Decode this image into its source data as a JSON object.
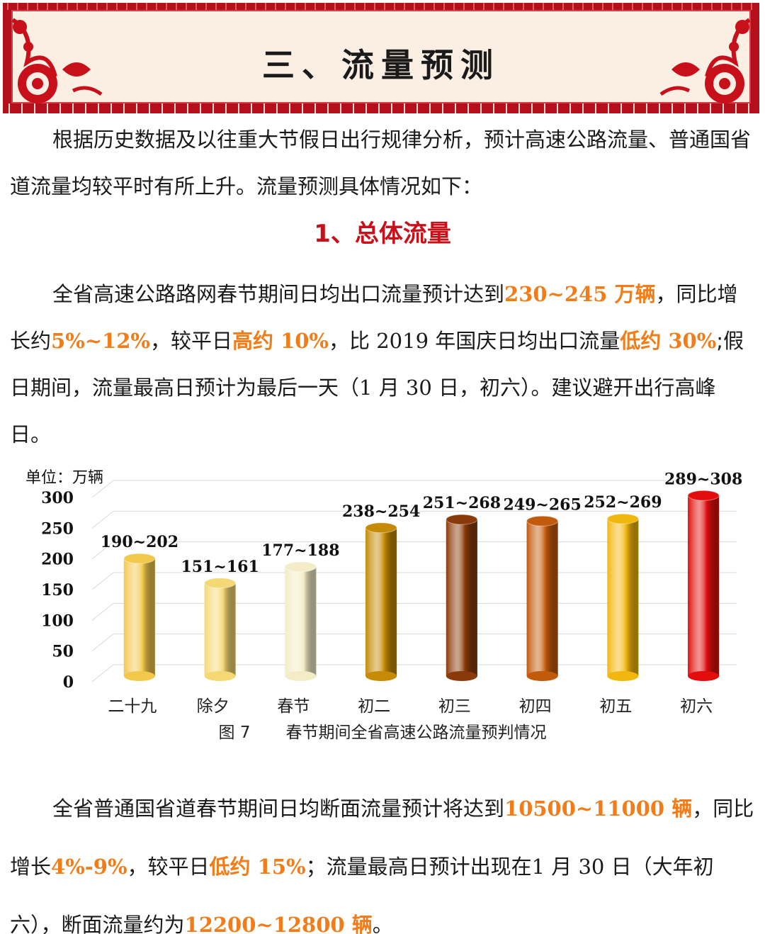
{
  "banner": {
    "title": "三、流量预测"
  },
  "intro": {
    "text": "根据历史数据及以往重大节假日出行规律分析，预计高速公路流量、普通国省道流量均较平时有所上升。流量预测具体情况如下："
  },
  "section": {
    "title": "1、总体流量"
  },
  "para1": {
    "t1": "全省高速公路路网春节期间日均出口流量预计达到",
    "h1": "230~245 万辆",
    "t2": "，同比增长约",
    "h2": "5%~12%",
    "t3": "，较平日",
    "h3": "高约 10%",
    "t4": "，比",
    "t4b": "2019",
    "t4c": "年国庆日均出口流量",
    "h4": "低约 30%",
    "t5": ";假日期间，流量最高日预计为最后一天（",
    "t5b": "1",
    "t5c": "月",
    "t5d": "30",
    "t5e": "日，初六）。建议避开出行高峰日。"
  },
  "para2": {
    "t1": "全省普通国省道春节期间日均断面流量预计将达到",
    "h1": "10500~11000 辆",
    "t2": "，同比增长",
    "h2": "4%-9%",
    "t3": "，较平日",
    "h3": "低约 15%",
    "t4": "；流量最高日预计出现在",
    "t4b": "1",
    "t4c": "月",
    "t4d": "30",
    "t4e": "日（大年初六），断面流量约为",
    "h4": "12200~12800 辆",
    "t5": "。"
  },
  "chart_data": {
    "type": "bar",
    "unit_label": "单位：万辆",
    "caption_num": "图 7",
    "caption_text": "春节期间全省高速公路流量预判情况",
    "categories": [
      "二十九",
      "除夕",
      "春节",
      "初二",
      "初三",
      "初四",
      "初五",
      "初六"
    ],
    "value_labels": [
      "190~202",
      "151~161",
      "177~188",
      "238~254",
      "251~268",
      "249~265",
      "252~269",
      "289~308"
    ],
    "values": [
      196,
      156,
      182.5,
      246,
      259.5,
      257,
      260.5,
      298.5
    ],
    "ylim": [
      0,
      300
    ],
    "yticks": [
      0,
      50,
      100,
      150,
      200,
      250,
      300
    ],
    "bar_colors": [
      "#f2c84b",
      "#f4d873",
      "#f3ecc6",
      "#c58a06",
      "#8a3a0a",
      "#c25a0c",
      "#f2b70e",
      "#e20e0e"
    ],
    "grid": true
  }
}
